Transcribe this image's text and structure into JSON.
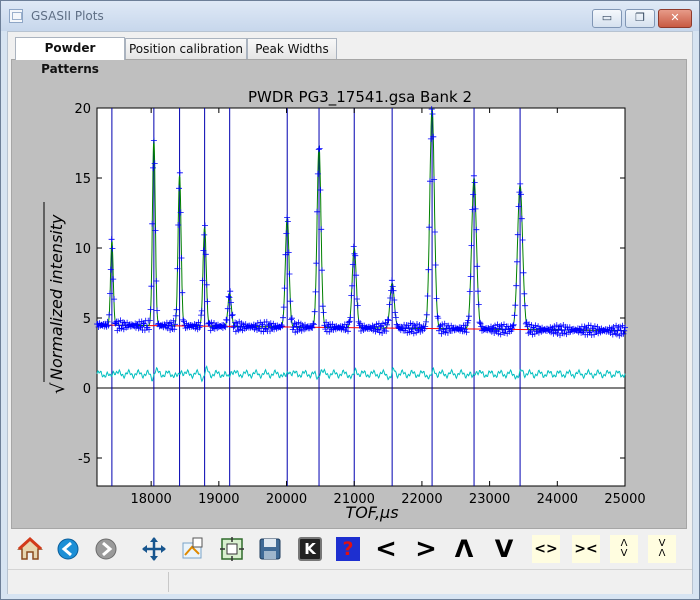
{
  "window": {
    "title": "GSASII Plots",
    "min_glyph": "▭",
    "restore_glyph": "❐",
    "close_glyph": "✕"
  },
  "tabs": [
    {
      "label": "Powder Patterns",
      "active": true
    },
    {
      "label": "Position calibration",
      "active": false
    },
    {
      "label": "Peak Widths",
      "active": false
    }
  ],
  "plot": {
    "title": "PWDR PG3_17541.gsa Bank 2",
    "xlabel": "TOF,µs",
    "ylabel": "Normalized intensity",
    "sqrt_symbol": "√"
  },
  "chart_data": {
    "type": "line",
    "title": "PWDR PG3_17541.gsa Bank 2",
    "xlabel": "TOF,µs",
    "ylabel": "√Normalized intensity",
    "xlim": [
      17200,
      25000
    ],
    "ylim": [
      -7,
      20
    ],
    "x_ticks": [
      18000,
      19000,
      20000,
      21000,
      22000,
      23000,
      24000,
      25000
    ],
    "y_ticks": [
      -5,
      0,
      5,
      10,
      15,
      20
    ],
    "grid": false,
    "peak_positions": [
      17420,
      18040,
      18420,
      18790,
      19160,
      20010,
      20480,
      21000,
      21560,
      22150,
      22770,
      23450
    ],
    "peak_heights": [
      10.5,
      17.8,
      15.2,
      11.5,
      6.8,
      12.2,
      17.3,
      10.0,
      7.5,
      20.0,
      15.0,
      14.5
    ],
    "background": {
      "x": [
        17200,
        25000
      ],
      "y": [
        4.5,
        4.1
      ],
      "color": "#ff0000"
    },
    "difference_curve_baseline": 1.0,
    "zero_line": 0,
    "series": [],
    "colors": {
      "observed": "#0000ff",
      "calculated": "#008000",
      "background": "#ff0000",
      "difference": "#00bfbf",
      "reflection_ticks": "#0000b0",
      "zero_line": "#000000"
    }
  },
  "toolbar": [
    {
      "name": "home-icon",
      "glyph": ""
    },
    {
      "name": "back-icon",
      "glyph": ""
    },
    {
      "name": "forward-icon",
      "glyph": ""
    },
    {
      "name": "pan-icon",
      "glyph": ""
    },
    {
      "name": "zoom-icon",
      "glyph": ""
    },
    {
      "name": "subplots-icon",
      "glyph": ""
    },
    {
      "name": "save-icon",
      "glyph": ""
    },
    {
      "name": "key-help-icon",
      "glyph": "K"
    },
    {
      "name": "help-icon",
      "glyph": "?"
    },
    {
      "name": "shift-left-icon",
      "glyph": "<"
    },
    {
      "name": "shift-right-icon",
      "glyph": ">"
    },
    {
      "name": "shift-up-icon",
      "glyph": "Λ"
    },
    {
      "name": "shift-down-icon",
      "glyph": "V"
    },
    {
      "name": "expand-x-icon",
      "glyph": "<>"
    },
    {
      "name": "shrink-x-icon",
      "glyph": "><"
    },
    {
      "name": "expand-y-icon",
      "glyph": "Λ\nV"
    },
    {
      "name": "shrink-y-icon",
      "glyph": "V\nΛ"
    }
  ]
}
